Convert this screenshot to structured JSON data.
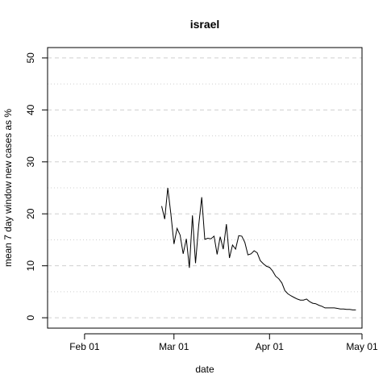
{
  "chart_data": {
    "type": "line",
    "title": "israel",
    "xlabel": "date",
    "ylabel": "mean  7  day window new cases as %",
    "xlim": [
      "2020-01-20",
      "2020-05-01"
    ],
    "ylim": [
      0,
      50
    ],
    "x_ticks": [
      {
        "date": "2020-02-01",
        "label": "Feb 01"
      },
      {
        "date": "2020-03-01",
        "label": "Mar 01"
      },
      {
        "date": "2020-04-01",
        "label": "Apr 01"
      },
      {
        "date": "2020-05-01",
        "label": "May 01"
      }
    ],
    "y_ticks": [
      0,
      10,
      20,
      30,
      40,
      50
    ],
    "grid": {
      "major_dashed": [
        0,
        10,
        20,
        30,
        40,
        50
      ],
      "minor_dotted": [
        5,
        15,
        25,
        35,
        45
      ]
    },
    "series": [
      {
        "x": [
          "2020-02-26",
          "2020-02-27",
          "2020-02-28",
          "2020-02-29",
          "2020-03-01",
          "2020-03-02",
          "2020-03-03",
          "2020-03-04",
          "2020-03-05",
          "2020-03-06",
          "2020-03-07",
          "2020-03-08",
          "2020-03-09",
          "2020-03-10",
          "2020-03-11",
          "2020-03-12",
          "2020-03-13",
          "2020-03-14",
          "2020-03-15",
          "2020-03-16",
          "2020-03-17",
          "2020-03-18",
          "2020-03-19",
          "2020-03-20",
          "2020-03-21",
          "2020-03-22",
          "2020-03-23",
          "2020-03-24",
          "2020-03-25",
          "2020-03-26",
          "2020-03-27",
          "2020-03-28",
          "2020-03-29",
          "2020-03-30",
          "2020-03-31",
          "2020-04-01",
          "2020-04-02",
          "2020-04-03",
          "2020-04-04",
          "2020-04-05",
          "2020-04-06",
          "2020-04-07",
          "2020-04-08",
          "2020-04-09",
          "2020-04-10",
          "2020-04-11",
          "2020-04-12",
          "2020-04-13",
          "2020-04-14",
          "2020-04-15",
          "2020-04-16",
          "2020-04-17",
          "2020-04-18",
          "2020-04-19",
          "2020-04-20",
          "2020-04-21",
          "2020-04-22",
          "2020-04-23",
          "2020-04-24",
          "2020-04-25",
          "2020-04-26",
          "2020-04-27",
          "2020-04-28",
          "2020-04-29"
        ],
        "values": [
          21.5,
          19.0,
          25.0,
          20.0,
          14.2,
          17.2,
          15.9,
          12.3,
          15.2,
          9.6,
          19.7,
          10.5,
          17.7,
          23.2,
          15.1,
          15.3,
          15.2,
          15.7,
          12.2,
          15.6,
          13.2,
          18.0,
          11.5,
          14.0,
          13.2,
          15.8,
          15.7,
          14.5,
          12.1,
          12.3,
          12.9,
          12.5,
          11.0,
          10.4,
          9.9,
          9.7,
          9.0,
          8.0,
          7.5,
          6.7,
          5.2,
          4.6,
          4.2,
          3.9,
          3.6,
          3.4,
          3.4,
          3.6,
          3.1,
          2.8,
          2.7,
          2.4,
          2.2,
          1.9,
          1.9,
          1.9,
          1.9,
          1.8,
          1.7,
          1.7,
          1.6,
          1.6,
          1.5,
          1.5
        ]
      }
    ]
  }
}
